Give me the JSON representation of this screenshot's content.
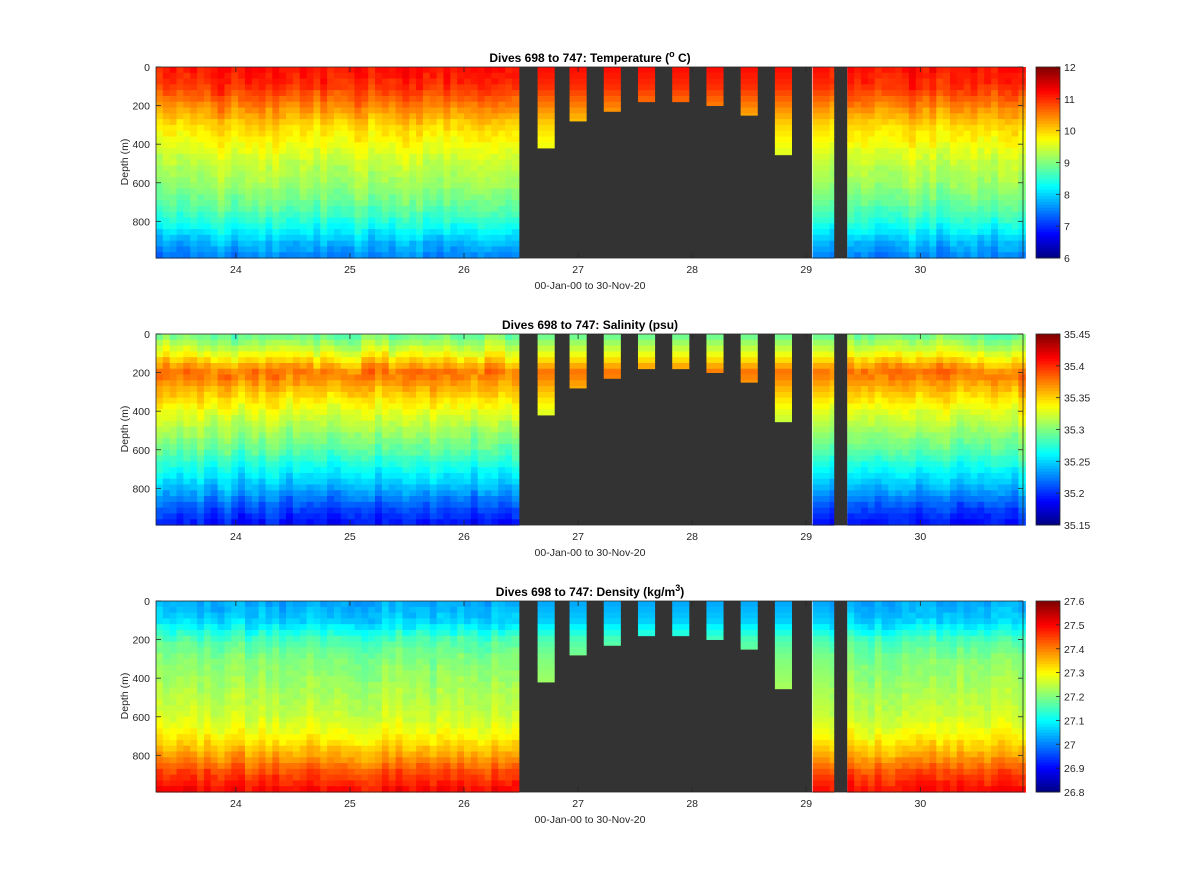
{
  "chart_data": [
    {
      "type": "heatmap",
      "title_main": "Dives 698 to 747: Temperature (",
      "title_sup": "o",
      "title_tail": " C)",
      "xlabel": "00-Jan-00 to 30-Nov-20",
      "ylabel": "Depth (m)",
      "xlim": [
        23.3,
        30.9
      ],
      "ylim": [
        990,
        0
      ],
      "xticks": [
        "24",
        "25",
        "26",
        "27",
        "28",
        "29",
        "30"
      ],
      "yticks": [
        "0",
        "200",
        "400",
        "600",
        "800"
      ],
      "colorbar": {
        "min": 6,
        "max": 12,
        "ticks": [
          "6",
          "7",
          "8",
          "9",
          "10",
          "11",
          "12"
        ]
      },
      "profile_depths_m": [
        0,
        100,
        200,
        300,
        400,
        500,
        600,
        700,
        800,
        900,
        990
      ],
      "profile_values": [
        11.2,
        11.0,
        10.5,
        10.0,
        9.7,
        9.4,
        9.2,
        8.9,
        8.5,
        7.9,
        7.5
      ],
      "shallow_dives": [
        {
          "day": 26.72,
          "max_depth_m": 420
        },
        {
          "day": 27.0,
          "max_depth_m": 280
        },
        {
          "day": 27.3,
          "max_depth_m": 230
        },
        {
          "day": 27.6,
          "max_depth_m": 180
        },
        {
          "day": 27.9,
          "max_depth_m": 180
        },
        {
          "day": 28.2,
          "max_depth_m": 200
        },
        {
          "day": 28.5,
          "max_depth_m": 250
        },
        {
          "day": 28.8,
          "max_depth_m": 455
        },
        {
          "day": 29.13,
          "max_depth_m": 990
        }
      ],
      "no_data_ranges": [
        [
          26.46,
          29.05
        ],
        [
          29.21,
          29.36
        ]
      ]
    },
    {
      "type": "heatmap",
      "title_main": "Dives 698 to 747: Salinity (psu)",
      "title_sup": "",
      "title_tail": "",
      "xlabel": "00-Jan-00 to 30-Nov-20",
      "ylabel": "Depth (m)",
      "xlim": [
        23.3,
        30.9
      ],
      "ylim": [
        990,
        0
      ],
      "xticks": [
        "24",
        "25",
        "26",
        "27",
        "28",
        "29",
        "30"
      ],
      "yticks": [
        "0",
        "200",
        "400",
        "600",
        "800"
      ],
      "colorbar": {
        "min": 35.15,
        "max": 35.45,
        "ticks": [
          "35.15",
          "35.2",
          "35.25",
          "35.3",
          "35.35",
          "35.4",
          "35.45"
        ]
      },
      "profile_depths_m": [
        0,
        100,
        200,
        300,
        400,
        500,
        600,
        700,
        800,
        900,
        990
      ],
      "profile_values": [
        35.29,
        35.33,
        35.38,
        35.355,
        35.33,
        35.31,
        35.29,
        35.265,
        35.24,
        35.21,
        35.19
      ],
      "shallow_dives": [
        {
          "day": 26.72,
          "max_depth_m": 420
        },
        {
          "day": 27.0,
          "max_depth_m": 280
        },
        {
          "day": 27.3,
          "max_depth_m": 230
        },
        {
          "day": 27.6,
          "max_depth_m": 180
        },
        {
          "day": 27.9,
          "max_depth_m": 180
        },
        {
          "day": 28.2,
          "max_depth_m": 200
        },
        {
          "day": 28.5,
          "max_depth_m": 250
        },
        {
          "day": 28.8,
          "max_depth_m": 455
        },
        {
          "day": 29.13,
          "max_depth_m": 990
        }
      ],
      "no_data_ranges": [
        [
          26.46,
          29.05
        ],
        [
          29.21,
          29.36
        ]
      ]
    },
    {
      "type": "heatmap",
      "title_main": "Dives 698 to 747: Density (kg/m",
      "title_sup": "3",
      "title_tail": ")",
      "xlabel": "00-Jan-00 to 30-Nov-20",
      "ylabel": "Depth (m)",
      "xlim": [
        23.3,
        30.9
      ],
      "ylim": [
        990,
        0
      ],
      "xticks": [
        "24",
        "25",
        "26",
        "27",
        "28",
        "29",
        "30"
      ],
      "yticks": [
        "0",
        "200",
        "400",
        "600",
        "800"
      ],
      "colorbar": {
        "min": 26.8,
        "max": 27.6,
        "ticks": [
          "26.8",
          "26.9",
          "27",
          "27.1",
          "27.2",
          "27.3",
          "27.4",
          "27.5",
          "27.6"
        ]
      },
      "profile_depths_m": [
        0,
        100,
        200,
        300,
        400,
        500,
        600,
        700,
        800,
        900,
        990
      ],
      "profile_values": [
        27.03,
        27.06,
        27.16,
        27.2,
        27.22,
        27.24,
        27.26,
        27.3,
        27.37,
        27.45,
        27.5
      ],
      "shallow_dives": [
        {
          "day": 26.72,
          "max_depth_m": 420
        },
        {
          "day": 27.0,
          "max_depth_m": 280
        },
        {
          "day": 27.3,
          "max_depth_m": 230
        },
        {
          "day": 27.6,
          "max_depth_m": 180
        },
        {
          "day": 27.9,
          "max_depth_m": 180
        },
        {
          "day": 28.2,
          "max_depth_m": 200
        },
        {
          "day": 28.5,
          "max_depth_m": 250
        },
        {
          "day": 28.8,
          "max_depth_m": 455
        },
        {
          "day": 29.13,
          "max_depth_m": 990
        }
      ],
      "no_data_ranges": [
        [
          26.46,
          29.05
        ],
        [
          29.21,
          29.36
        ]
      ]
    }
  ],
  "colors": {
    "no_data": "#333333",
    "axis": "#262626",
    "colormap": "jet"
  }
}
